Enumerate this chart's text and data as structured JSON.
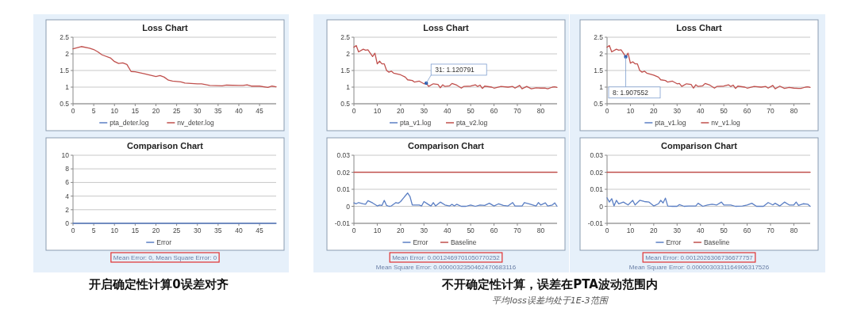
{
  "chart_data": [
    {
      "type": "line",
      "title": "Loss Chart",
      "xlim": [
        0,
        49
      ],
      "xticks": [
        0,
        5,
        10,
        15,
        20,
        25,
        30,
        35,
        40,
        45
      ],
      "ylim": [
        0.5,
        2.5
      ],
      "yticks": [
        0.5,
        1,
        1.5,
        2,
        2.5
      ],
      "grid": "y",
      "legend": "bottom",
      "marker": "none",
      "series": [
        {
          "name": "pta_deter.log",
          "color": "#5b7fc4"
        },
        {
          "name": "nv_deter.log",
          "color": "#c0504d",
          "x": [
            0,
            2,
            4,
            5,
            6,
            7,
            9,
            10,
            11,
            12,
            13,
            14,
            15,
            17,
            20,
            21,
            22,
            23,
            24,
            26,
            27,
            30,
            31,
            33,
            36,
            37,
            40,
            41,
            42,
            43,
            45,
            47,
            48,
            49
          ],
          "values": [
            2.15,
            2.22,
            2.17,
            2.13,
            2.06,
            1.97,
            1.88,
            1.77,
            1.71,
            1.73,
            1.68,
            1.47,
            1.46,
            1.41,
            1.32,
            1.35,
            1.3,
            1.21,
            1.18,
            1.16,
            1.12,
            1.1,
            1.1,
            1.05,
            1.04,
            1.06,
            1.05,
            1.05,
            1.07,
            1.03,
            1.03,
            0.99,
            1.03,
            1.01
          ]
        }
      ]
    },
    {
      "type": "line",
      "title": "Comparison Chart",
      "xlim": [
        0,
        49
      ],
      "xticks": [
        0,
        5,
        10,
        15,
        20,
        25,
        30,
        35,
        40,
        45
      ],
      "ylim": [
        0,
        10
      ],
      "yticks": [
        0,
        2,
        4,
        6,
        8,
        10
      ],
      "grid": "y",
      "legend": "bottom",
      "marker": "none",
      "series": [
        {
          "name": "Error",
          "color": "#5b7fc4",
          "x": [
            0,
            49
          ],
          "values": [
            0,
            0
          ]
        }
      ],
      "annotations": [
        "Mean Error: 0, Mean Square Error: 0"
      ]
    },
    {
      "type": "line",
      "title": "Loss Chart",
      "xlim": [
        0,
        87
      ],
      "xticks": [
        0,
        10,
        20,
        30,
        40,
        50,
        60,
        70,
        80
      ],
      "ylim": [
        0.5,
        2.5
      ],
      "yticks": [
        0.5,
        1,
        1.5,
        2,
        2.5
      ],
      "grid": "y",
      "legend": "bottom",
      "marker": "none",
      "series": [
        {
          "name": "pta_v1.log",
          "color": "#5b7fc4"
        },
        {
          "name": "pta_v2.log",
          "color": "#c0504d",
          "x": [
            0,
            1,
            2,
            4,
            5,
            6,
            7,
            8,
            9,
            10,
            11,
            12,
            13,
            14,
            15,
            16,
            17,
            20,
            22,
            23,
            25,
            26,
            28,
            30,
            31,
            32,
            34,
            36,
            37,
            38,
            39,
            41,
            42,
            44,
            46,
            47,
            50,
            52,
            53,
            54,
            55,
            56,
            59,
            60,
            63,
            66,
            68,
            69,
            71,
            72,
            74,
            76,
            78,
            80,
            82,
            83,
            85,
            86,
            87
          ],
          "values": [
            2.2,
            2.25,
            2.06,
            2.14,
            2.11,
            2.12,
            2.02,
            1.92,
            2.02,
            1.7,
            1.78,
            1.7,
            1.7,
            1.5,
            1.45,
            1.48,
            1.42,
            1.37,
            1.3,
            1.22,
            1.2,
            1.15,
            1.18,
            1.1,
            1.12,
            1.02,
            1.1,
            1.08,
            0.98,
            1.07,
            1.02,
            1.04,
            1.11,
            1.06,
            0.97,
            1.02,
            1.03,
            1.07,
            1.02,
            1.06,
            0.96,
            1.03,
            1.0,
            0.97,
            1.02,
            1.0,
            1.02,
            0.97,
            1.05,
            0.95,
            1.02,
            0.95,
            0.98,
            0.97,
            0.97,
            0.95,
            1.0,
            1.01,
            0.99
          ]
        }
      ],
      "annotations": [
        {
          "text": "31: 1.120791",
          "x": 31,
          "y": 1.12
        }
      ]
    },
    {
      "type": "line",
      "title": "Comparison Chart",
      "xlim": [
        0,
        87
      ],
      "xticks": [
        0,
        10,
        20,
        30,
        40,
        50,
        60,
        70,
        80
      ],
      "ylim": [
        -0.01,
        0.03
      ],
      "yticks": [
        -0.01,
        0,
        0.01,
        0.02,
        0.03
      ],
      "grid": "y",
      "legend": "bottom",
      "marker": "none",
      "series": [
        {
          "name": "Error",
          "color": "#5b7fc4",
          "x": [
            0,
            1,
            2,
            4,
            5,
            6,
            8,
            10,
            11,
            12,
            13,
            14,
            15,
            16,
            18,
            19,
            20,
            21,
            23,
            24,
            25,
            28,
            29,
            30,
            32,
            33,
            34,
            35,
            37,
            39,
            41,
            42,
            43,
            44,
            46,
            48,
            50,
            52,
            54,
            56,
            58,
            60,
            62,
            64,
            66,
            68,
            69,
            72,
            73,
            75,
            78,
            79,
            80,
            82,
            83,
            85,
            86,
            87
          ],
          "values": [
            0.002,
            0.0015,
            0.0022,
            0.0015,
            0.0012,
            0.0033,
            0.002,
            0.0002,
            0.0008,
            0.0005,
            0.0035,
            0.0005,
            0.0,
            0.0002,
            0.0022,
            0.0018,
            0.0028,
            0.0045,
            0.0078,
            0.0058,
            0.0008,
            0.0008,
            0.0002,
            0.0028,
            0.001,
            0.0002,
            0.0022,
            0.0002,
            0.0025,
            0.0008,
            0.0002,
            0.0012,
            0.0002,
            0.0012,
            0.0,
            0.0,
            0.0008,
            0.0,
            0.0008,
            0.0005,
            0.0018,
            0.0002,
            0.0015,
            0.0005,
            0.0002,
            0.0022,
            0.0002,
            0.0002,
            0.0022,
            0.0015,
            0.0002,
            0.0022,
            0.0008,
            0.002,
            0.0002,
            0.0008,
            0.002,
            0.0
          ]
        },
        {
          "name": "Baseline",
          "color": "#c0504d",
          "x": [
            0,
            87
          ],
          "values": [
            0.02,
            0.02
          ]
        }
      ],
      "annotations": [
        "Mean Error: 0.0012469701050770252",
        "Mean Square Error: 0.0000032350462470683116"
      ]
    },
    {
      "type": "line",
      "title": "Loss Chart",
      "xlim": [
        0,
        87
      ],
      "xticks": [
        0,
        10,
        20,
        30,
        40,
        50,
        60,
        70,
        80
      ],
      "ylim": [
        0.5,
        2.5
      ],
      "yticks": [
        0.5,
        1,
        1.5,
        2,
        2.5
      ],
      "grid": "y",
      "legend": "bottom",
      "marker": "none",
      "series": [
        {
          "name": "pta_v1.log",
          "color": "#5b7fc4"
        },
        {
          "name": "nv_v1.log",
          "color": "#c0504d",
          "x": [
            0,
            1,
            2,
            4,
            5,
            6,
            7,
            8,
            9,
            10,
            11,
            12,
            13,
            14,
            15,
            16,
            17,
            20,
            22,
            23,
            25,
            26,
            28,
            30,
            31,
            32,
            34,
            36,
            37,
            38,
            39,
            41,
            42,
            44,
            46,
            47,
            50,
            52,
            53,
            54,
            55,
            56,
            59,
            60,
            63,
            66,
            68,
            69,
            71,
            72,
            74,
            76,
            78,
            80,
            82,
            83,
            85,
            86,
            87
          ],
          "values": [
            2.2,
            2.25,
            2.06,
            2.14,
            2.11,
            2.12,
            2.02,
            1.91,
            2.02,
            1.72,
            1.76,
            1.7,
            1.7,
            1.5,
            1.45,
            1.48,
            1.42,
            1.36,
            1.3,
            1.22,
            1.2,
            1.15,
            1.18,
            1.1,
            1.11,
            1.02,
            1.1,
            1.08,
            0.97,
            1.07,
            1.02,
            1.04,
            1.11,
            1.06,
            0.97,
            1.02,
            1.03,
            1.07,
            1.02,
            1.06,
            0.96,
            1.03,
            1.0,
            0.97,
            1.02,
            1.0,
            1.02,
            0.97,
            1.05,
            0.95,
            1.03,
            0.96,
            0.99,
            0.97,
            0.96,
            0.96,
            1.0,
            1.01,
            0.99
          ]
        }
      ],
      "annotations": [
        {
          "text": "8: 1.907552",
          "x": 8,
          "y": 1.91
        }
      ]
    },
    {
      "type": "line",
      "title": "Comparison Chart",
      "xlim": [
        0,
        87
      ],
      "xticks": [
        0,
        10,
        20,
        30,
        40,
        50,
        60,
        70,
        80
      ],
      "ylim": [
        -0.01,
        0.03
      ],
      "yticks": [
        -0.01,
        0,
        0.01,
        0.02,
        0.03
      ],
      "grid": "y",
      "legend": "bottom",
      "marker": "none",
      "series": [
        {
          "name": "Error",
          "color": "#5b7fc4",
          "x": [
            0,
            1,
            2,
            3,
            4,
            5,
            7,
            9,
            11,
            12,
            14,
            16,
            18,
            20,
            22,
            23,
            24,
            25,
            26,
            28,
            30,
            31,
            33,
            35,
            38,
            39,
            41,
            43,
            45,
            47,
            49,
            50,
            53,
            55,
            58,
            60,
            62,
            64,
            67,
            69,
            71,
            72,
            74,
            76,
            78,
            80,
            81,
            82,
            84,
            86,
            87
          ],
          "values": [
            0.005,
            0.0025,
            0.0045,
            0.0002,
            0.0035,
            0.0015,
            0.0025,
            0.0008,
            0.0035,
            0.0008,
            0.0035,
            0.0028,
            0.0025,
            0.0002,
            0.0015,
            0.0035,
            0.002,
            0.0048,
            0.0002,
            0.0,
            0.0,
            0.001,
            0.0,
            0.0002,
            0.0002,
            0.0018,
            0.0,
            0.0008,
            0.0012,
            0.0008,
            0.0025,
            0.0008,
            0.0008,
            0.0,
            0.0002,
            0.0008,
            0.0018,
            0.0,
            0.0,
            0.0022,
            0.0008,
            0.0018,
            0.0002,
            0.0025,
            0.0008,
            0.0008,
            0.0025,
            0.0005,
            0.0015,
            0.0012,
            0.0
          ]
        },
        {
          "name": "Baseline",
          "color": "#c0504d",
          "x": [
            0,
            87
          ],
          "values": [
            0.02,
            0.02
          ]
        }
      ],
      "annotations": [
        "Mean Error: 0.0012026306736677757",
        "Mean Square Error: 0.0000030331164906317526"
      ]
    },
    {
      "type": "other",
      "annotations": [
        "开启确定性计算0误差对齐",
        "不开确定性计算，误差在PTA波动范围内",
        "平均loss误差均处于1E-3范围"
      ]
    }
  ]
}
